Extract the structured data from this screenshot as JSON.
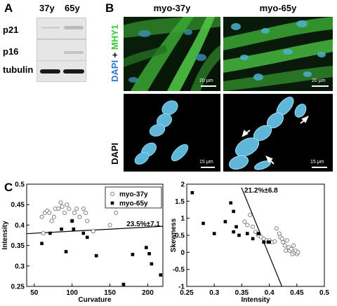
{
  "panel_a": {
    "letter": "A",
    "lanes": [
      "37y",
      "65y"
    ],
    "rows": [
      "p21",
      "p16",
      "tubulin"
    ]
  },
  "panel_b": {
    "letter": "B",
    "columns": [
      "myo-37y",
      "myo-65y"
    ],
    "stain_label_parts": {
      "dapi": "DAPI",
      "plus": " + ",
      "mhy1": "MHY1"
    },
    "stain_label_bottom": "DAPI",
    "scale_top": "20 μm",
    "scale_bottom": "15 μm",
    "colors": {
      "dapi": "#2a78d6",
      "mhy1": "#33cc33"
    }
  },
  "panel_c": {
    "letter": "C"
  },
  "chart_data": [
    {
      "type": "scatter",
      "xlabel": "Curvature",
      "ylabel": "Intensity",
      "xlim": [
        40,
        220
      ],
      "ylim": [
        0.25,
        0.5
      ],
      "xticks": [
        "50",
        "100",
        "150",
        "200"
      ],
      "yticks": [
        "0.25",
        "0.3",
        "0.35",
        "0.4",
        "0.45",
        "0.5"
      ],
      "legend_position": "top-right",
      "annotation": "23.5%±7.1",
      "fit_line": {
        "x": [
          40,
          220
        ],
        "y": [
          0.379,
          0.397
        ]
      },
      "series": [
        {
          "name": "myo-37y",
          "marker": "open-circle",
          "points": [
            [
              60,
              0.42
            ],
            [
              62,
              0.38
            ],
            [
              64,
              0.43
            ],
            [
              67,
              0.435
            ],
            [
              70,
              0.43
            ],
            [
              73,
              0.41
            ],
            [
              76,
              0.42
            ],
            [
              78,
              0.44
            ],
            [
              82,
              0.44
            ],
            [
              85,
              0.455
            ],
            [
              87,
              0.445
            ],
            [
              90,
              0.43
            ],
            [
              93,
              0.45
            ],
            [
              96,
              0.44
            ],
            [
              100,
              0.41
            ],
            [
              103,
              0.43
            ],
            [
              106,
              0.44
            ],
            [
              110,
              0.42
            ],
            [
              115,
              0.44
            ],
            [
              118,
              0.43
            ],
            [
              120,
              0.41
            ],
            [
              128,
              0.385
            ],
            [
              150,
              0.4
            ],
            [
              158,
              0.43
            ]
          ]
        },
        {
          "name": "myo-65y",
          "marker": "filled-square",
          "points": [
            [
              60,
              0.355
            ],
            [
              71,
              0.38
            ],
            [
              86,
              0.39
            ],
            [
              92,
              0.335
            ],
            [
              100,
              0.41
            ],
            [
              102,
              0.39
            ],
            [
              115,
              0.38
            ],
            [
              120,
              0.37
            ],
            [
              132,
              0.325
            ],
            [
              168,
              0.255
            ],
            [
              180,
              0.328
            ],
            [
              198,
              0.345
            ],
            [
              202,
              0.33
            ],
            [
              205,
              0.305
            ],
            [
              217,
              0.278
            ]
          ]
        }
      ]
    },
    {
      "type": "scatter",
      "xlabel": "Intensity",
      "ylabel": "Skewness",
      "xlim": [
        0.25,
        0.5
      ],
      "ylim": [
        -1,
        2
      ],
      "xticks": [
        "0.25",
        "0.3",
        "0.35",
        "0.4",
        "0.45",
        "0.5"
      ],
      "yticks": [
        "-1",
        "-0.5",
        "0",
        "0.5",
        "1",
        "1.5",
        "2"
      ],
      "annotation": "21.2%±6.8",
      "fit_line": {
        "x": [
          0.3495,
          0.4228
        ],
        "y": [
          1.9,
          -1.0
        ]
      },
      "series": [
        {
          "name": "myo-37y",
          "marker": "open-circle",
          "points": [
            [
              0.355,
              0.9
            ],
            [
              0.36,
              0.8
            ],
            [
              0.365,
              1.1
            ],
            [
              0.37,
              0.75
            ],
            [
              0.375,
              0.6
            ],
            [
              0.38,
              0.5
            ],
            [
              0.385,
              0.45
            ],
            [
              0.39,
              0.4
            ],
            [
              0.395,
              0.35
            ],
            [
              0.4,
              0.35
            ],
            [
              0.405,
              0.3
            ],
            [
              0.41,
              0.32
            ],
            [
              0.413,
              0.7
            ],
            [
              0.418,
              0.55
            ],
            [
              0.42,
              0.45
            ],
            [
              0.423,
              0.4
            ],
            [
              0.425,
              0.3
            ],
            [
              0.428,
              0.2
            ],
            [
              0.43,
              0.05
            ],
            [
              0.432,
              0.35
            ],
            [
              0.435,
              0.15
            ],
            [
              0.437,
              0.05
            ],
            [
              0.44,
              0.1
            ],
            [
              0.442,
              -0.05
            ],
            [
              0.444,
              0.2
            ],
            [
              0.446,
              0.0
            ],
            [
              0.448,
              0.05
            ],
            [
              0.45,
              -0.05
            ],
            [
              0.452,
              0.0
            ]
          ]
        },
        {
          "name": "myo-65y",
          "marker": "filled-square",
          "points": [
            [
              0.26,
              1.75
            ],
            [
              0.28,
              0.85
            ],
            [
              0.3,
              0.55
            ],
            [
              0.32,
              0.9
            ],
            [
              0.33,
              1.45
            ],
            [
              0.335,
              1.2
            ],
            [
              0.335,
              0.6
            ],
            [
              0.34,
              0.75
            ],
            [
              0.345,
              0.5
            ],
            [
              0.36,
              0.55
            ],
            [
              0.37,
              0.4
            ],
            [
              0.38,
              0.55
            ],
            [
              0.39,
              0.3
            ],
            [
              0.398,
              0.3
            ],
            [
              0.4,
              0.3
            ]
          ]
        }
      ]
    }
  ]
}
